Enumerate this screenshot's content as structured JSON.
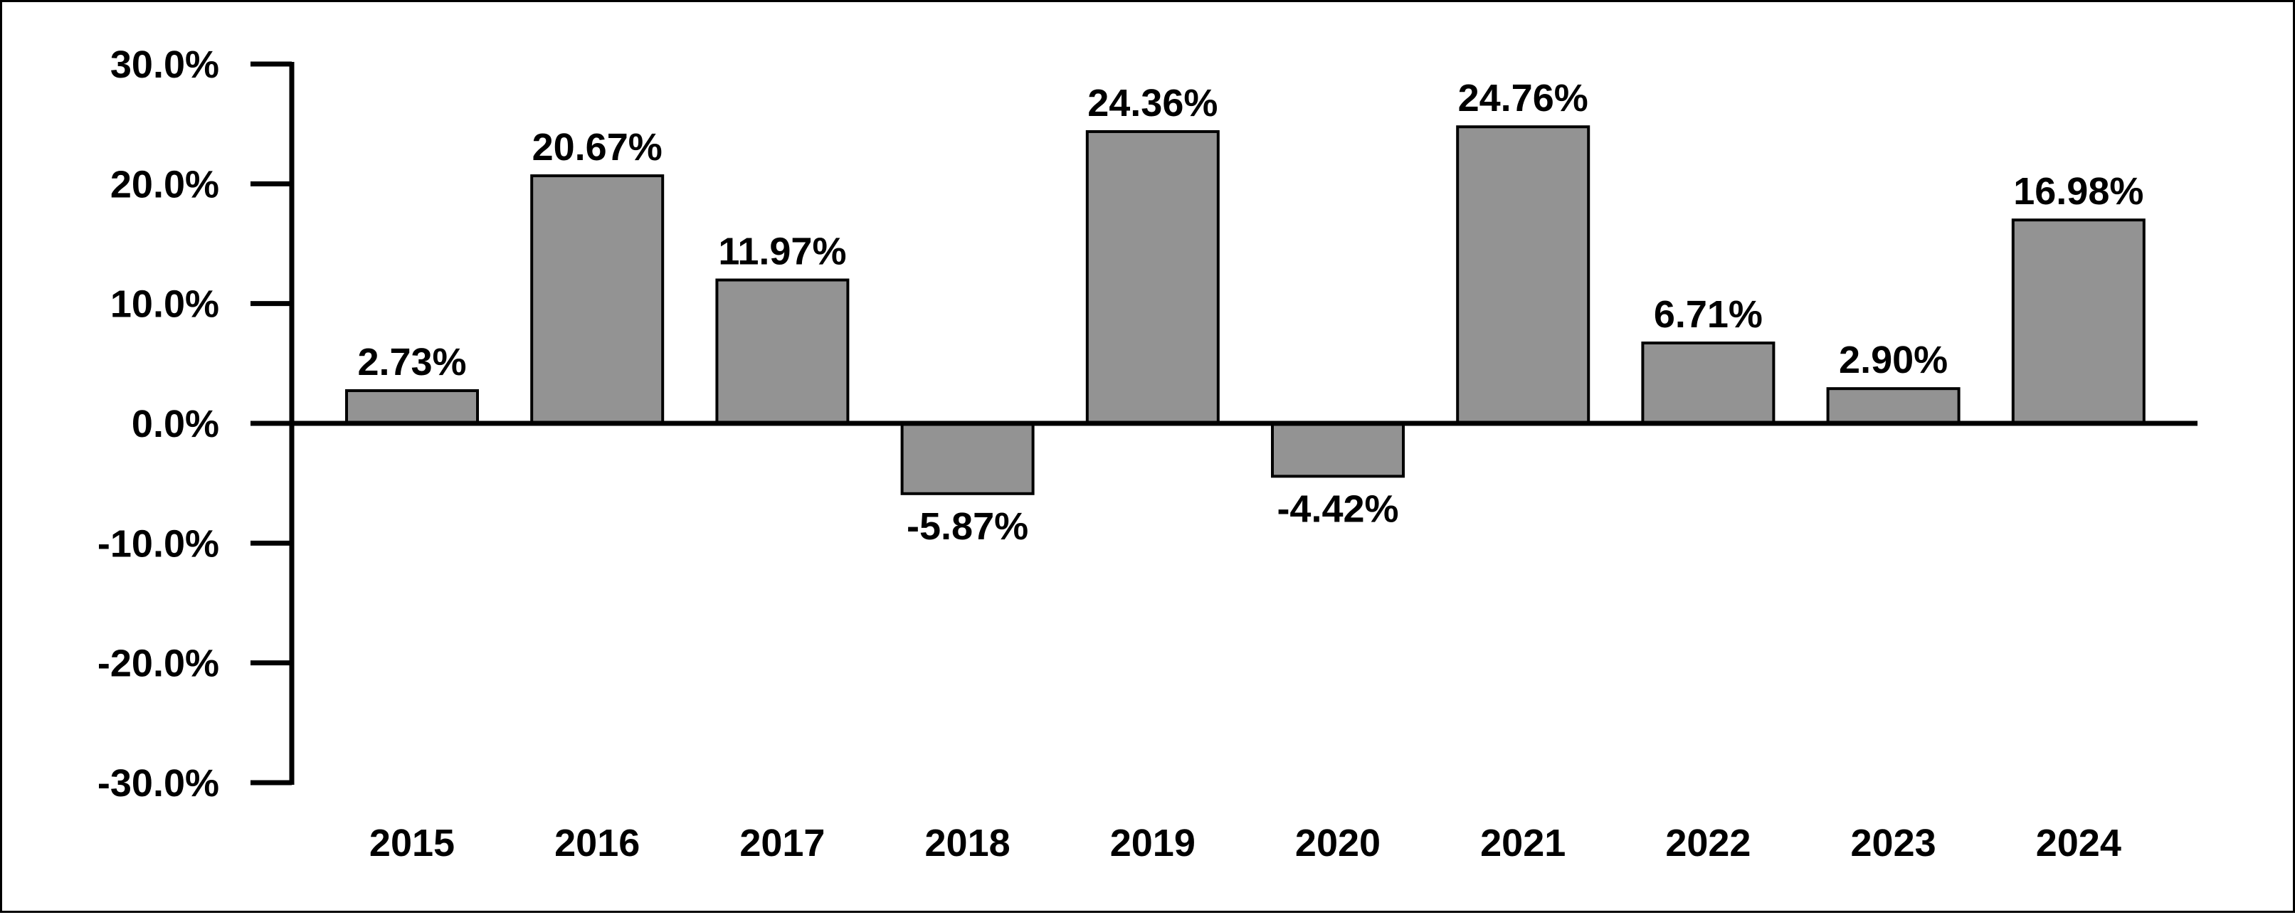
{
  "chart_data": {
    "type": "bar",
    "title": "",
    "xlabel": "",
    "ylabel": "",
    "categories": [
      "2015",
      "2016",
      "2017",
      "2018",
      "2019",
      "2020",
      "2021",
      "2022",
      "2023",
      "2024"
    ],
    "values": [
      2.73,
      20.67,
      11.97,
      -5.87,
      24.36,
      -4.42,
      24.76,
      6.71,
      2.9,
      16.98
    ],
    "data_labels": [
      "2.73%",
      "20.67%",
      "11.97%",
      "-5.87%",
      "24.36%",
      "-4.42%",
      "24.76%",
      "6.71%",
      "2.90%",
      "16.98%"
    ],
    "ylim": [
      -30,
      30
    ],
    "yticks": [
      30,
      20,
      10,
      0,
      -10,
      -20,
      -30
    ],
    "ytick_labels": [
      "30.0%",
      "20.0%",
      "10.0%",
      "0.0%",
      "-10.0%",
      "-20.0%",
      "-30.0%"
    ],
    "grid": false,
    "legend": "none",
    "colors": {
      "bar_fill": "#939393",
      "bar_stroke": "#000000",
      "axis": "#000000",
      "text": "#000000",
      "background": "#ffffff"
    }
  }
}
